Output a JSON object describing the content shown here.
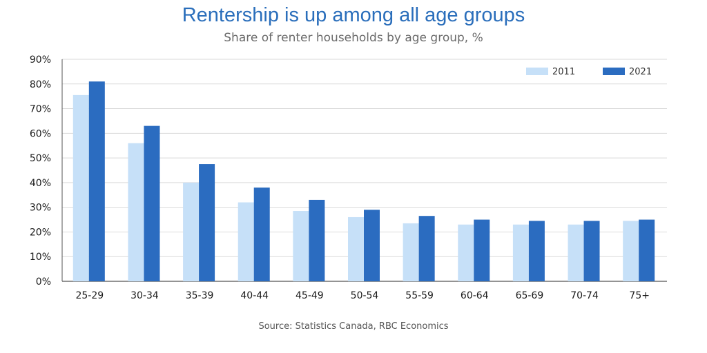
{
  "colors": {
    "series_2011": "#c6e0f8",
    "series_2021": "#2b6cc0",
    "gridline": "#d9d9d9",
    "axis": "#555555"
  },
  "chart_data": {
    "type": "bar",
    "title": "Rentership is up among all age groups",
    "subtitle": "Share of renter households by age group, %",
    "source": "Source: Statistics Canada, RBC Economics",
    "categories": [
      "25-29",
      "30-34",
      "35-39",
      "40-44",
      "45-49",
      "50-54",
      "55-59",
      "60-64",
      "65-69",
      "70-74",
      "75+"
    ],
    "series": [
      {
        "name": "2011",
        "values": [
          75.5,
          56,
          40,
          32,
          28.5,
          26,
          23.5,
          23,
          23,
          23,
          24.5
        ]
      },
      {
        "name": "2021",
        "values": [
          81,
          63,
          47.5,
          38,
          33,
          29,
          26.5,
          25,
          24.5,
          24.5,
          25
        ]
      }
    ],
    "ylim": [
      0,
      90
    ],
    "yticks": [
      0,
      10,
      20,
      30,
      40,
      50,
      60,
      70,
      80,
      90
    ],
    "ytick_labels": [
      "0%",
      "10%",
      "20%",
      "30%",
      "40%",
      "50%",
      "60%",
      "70%",
      "80%",
      "90%"
    ],
    "grid": true,
    "legend": "top-right"
  }
}
